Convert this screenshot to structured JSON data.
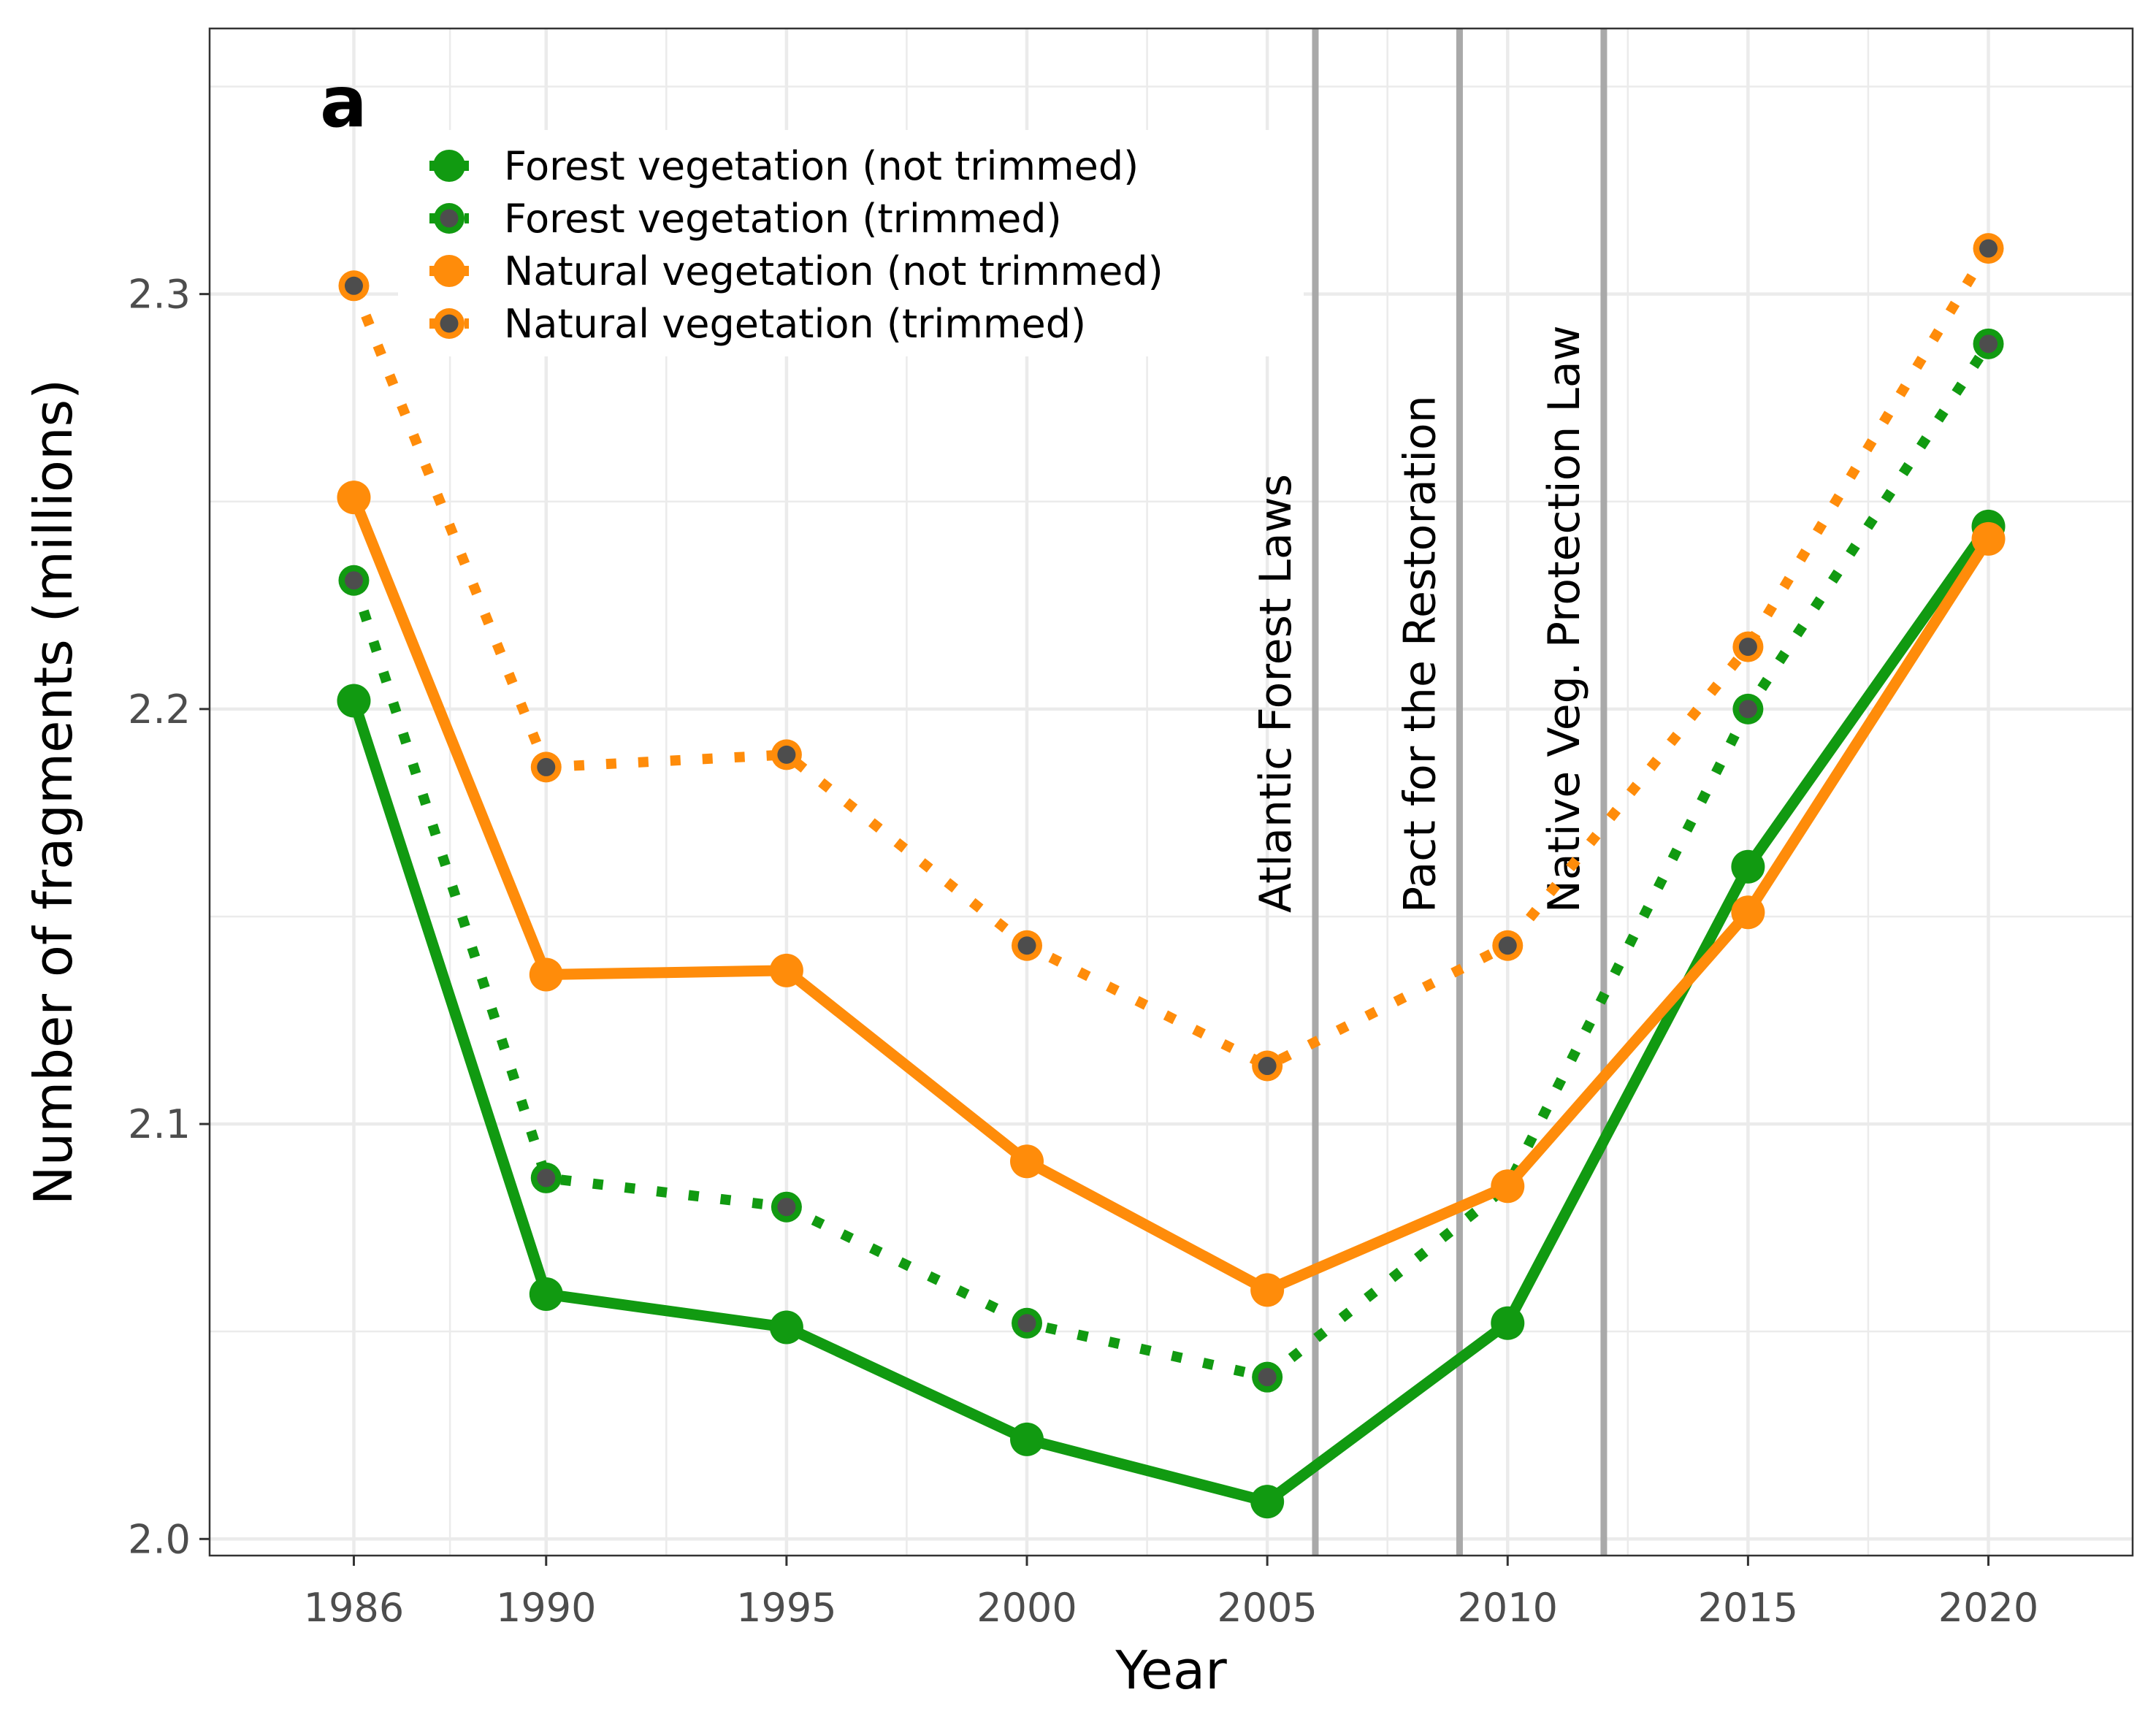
{
  "chart_data": {
    "type": "line",
    "panel_label": "a",
    "xlabel": "Year",
    "ylabel": "Number of fragments (millions)",
    "x": [
      1986,
      1990,
      1995,
      2000,
      2005,
      2010,
      2015,
      2020
    ],
    "x_ticks": [
      "1986",
      "1990",
      "1995",
      "2000",
      "2005",
      "2010",
      "2015",
      "2020"
    ],
    "xlim": [
      1983,
      2023
    ],
    "ylim": [
      1.996,
      2.364
    ],
    "y_ticks": [
      "2.0",
      "2.1",
      "2.2",
      "2.3"
    ],
    "grid": true,
    "legend_position": "top-left",
    "series": [
      {
        "name": "Forest vegetation (not trimmed)",
        "line": "solid",
        "point": "filled",
        "color": "#119a11",
        "values": [
          2.202,
          2.059,
          2.051,
          2.024,
          2.009,
          2.052,
          2.162,
          2.244
        ]
      },
      {
        "name": "Forest vegetation (trimmed)",
        "line": "dotted",
        "point": "ring",
        "color": "#119a11",
        "values": [
          2.231,
          2.087,
          2.08,
          2.052,
          2.039,
          2.085,
          2.2,
          2.288
        ]
      },
      {
        "name": "Natural vegetation (not trimmed)",
        "line": "solid",
        "point": "filled",
        "color": "#ff8c0a",
        "values": [
          2.251,
          2.136,
          2.137,
          2.091,
          2.06,
          2.085,
          2.151,
          2.241
        ]
      },
      {
        "name": "Natural vegetation (trimmed)",
        "line": "dotted",
        "point": "ring",
        "color": "#ff8c0a",
        "values": [
          2.302,
          2.186,
          2.189,
          2.143,
          2.114,
          2.143,
          2.215,
          2.311
        ]
      }
    ],
    "reference_lines": [
      {
        "x": 2006,
        "label": "Atlantic Forest Laws"
      },
      {
        "x": 2009,
        "label": "Pact for the Restoration"
      },
      {
        "x": 2012,
        "label": "Native Veg. Protection Law"
      }
    ],
    "colors": {
      "grid": "#ebebeb",
      "reference_line": "#a9a9a9",
      "panel_border": "#333333",
      "point_core": "#4d4d4d"
    }
  }
}
